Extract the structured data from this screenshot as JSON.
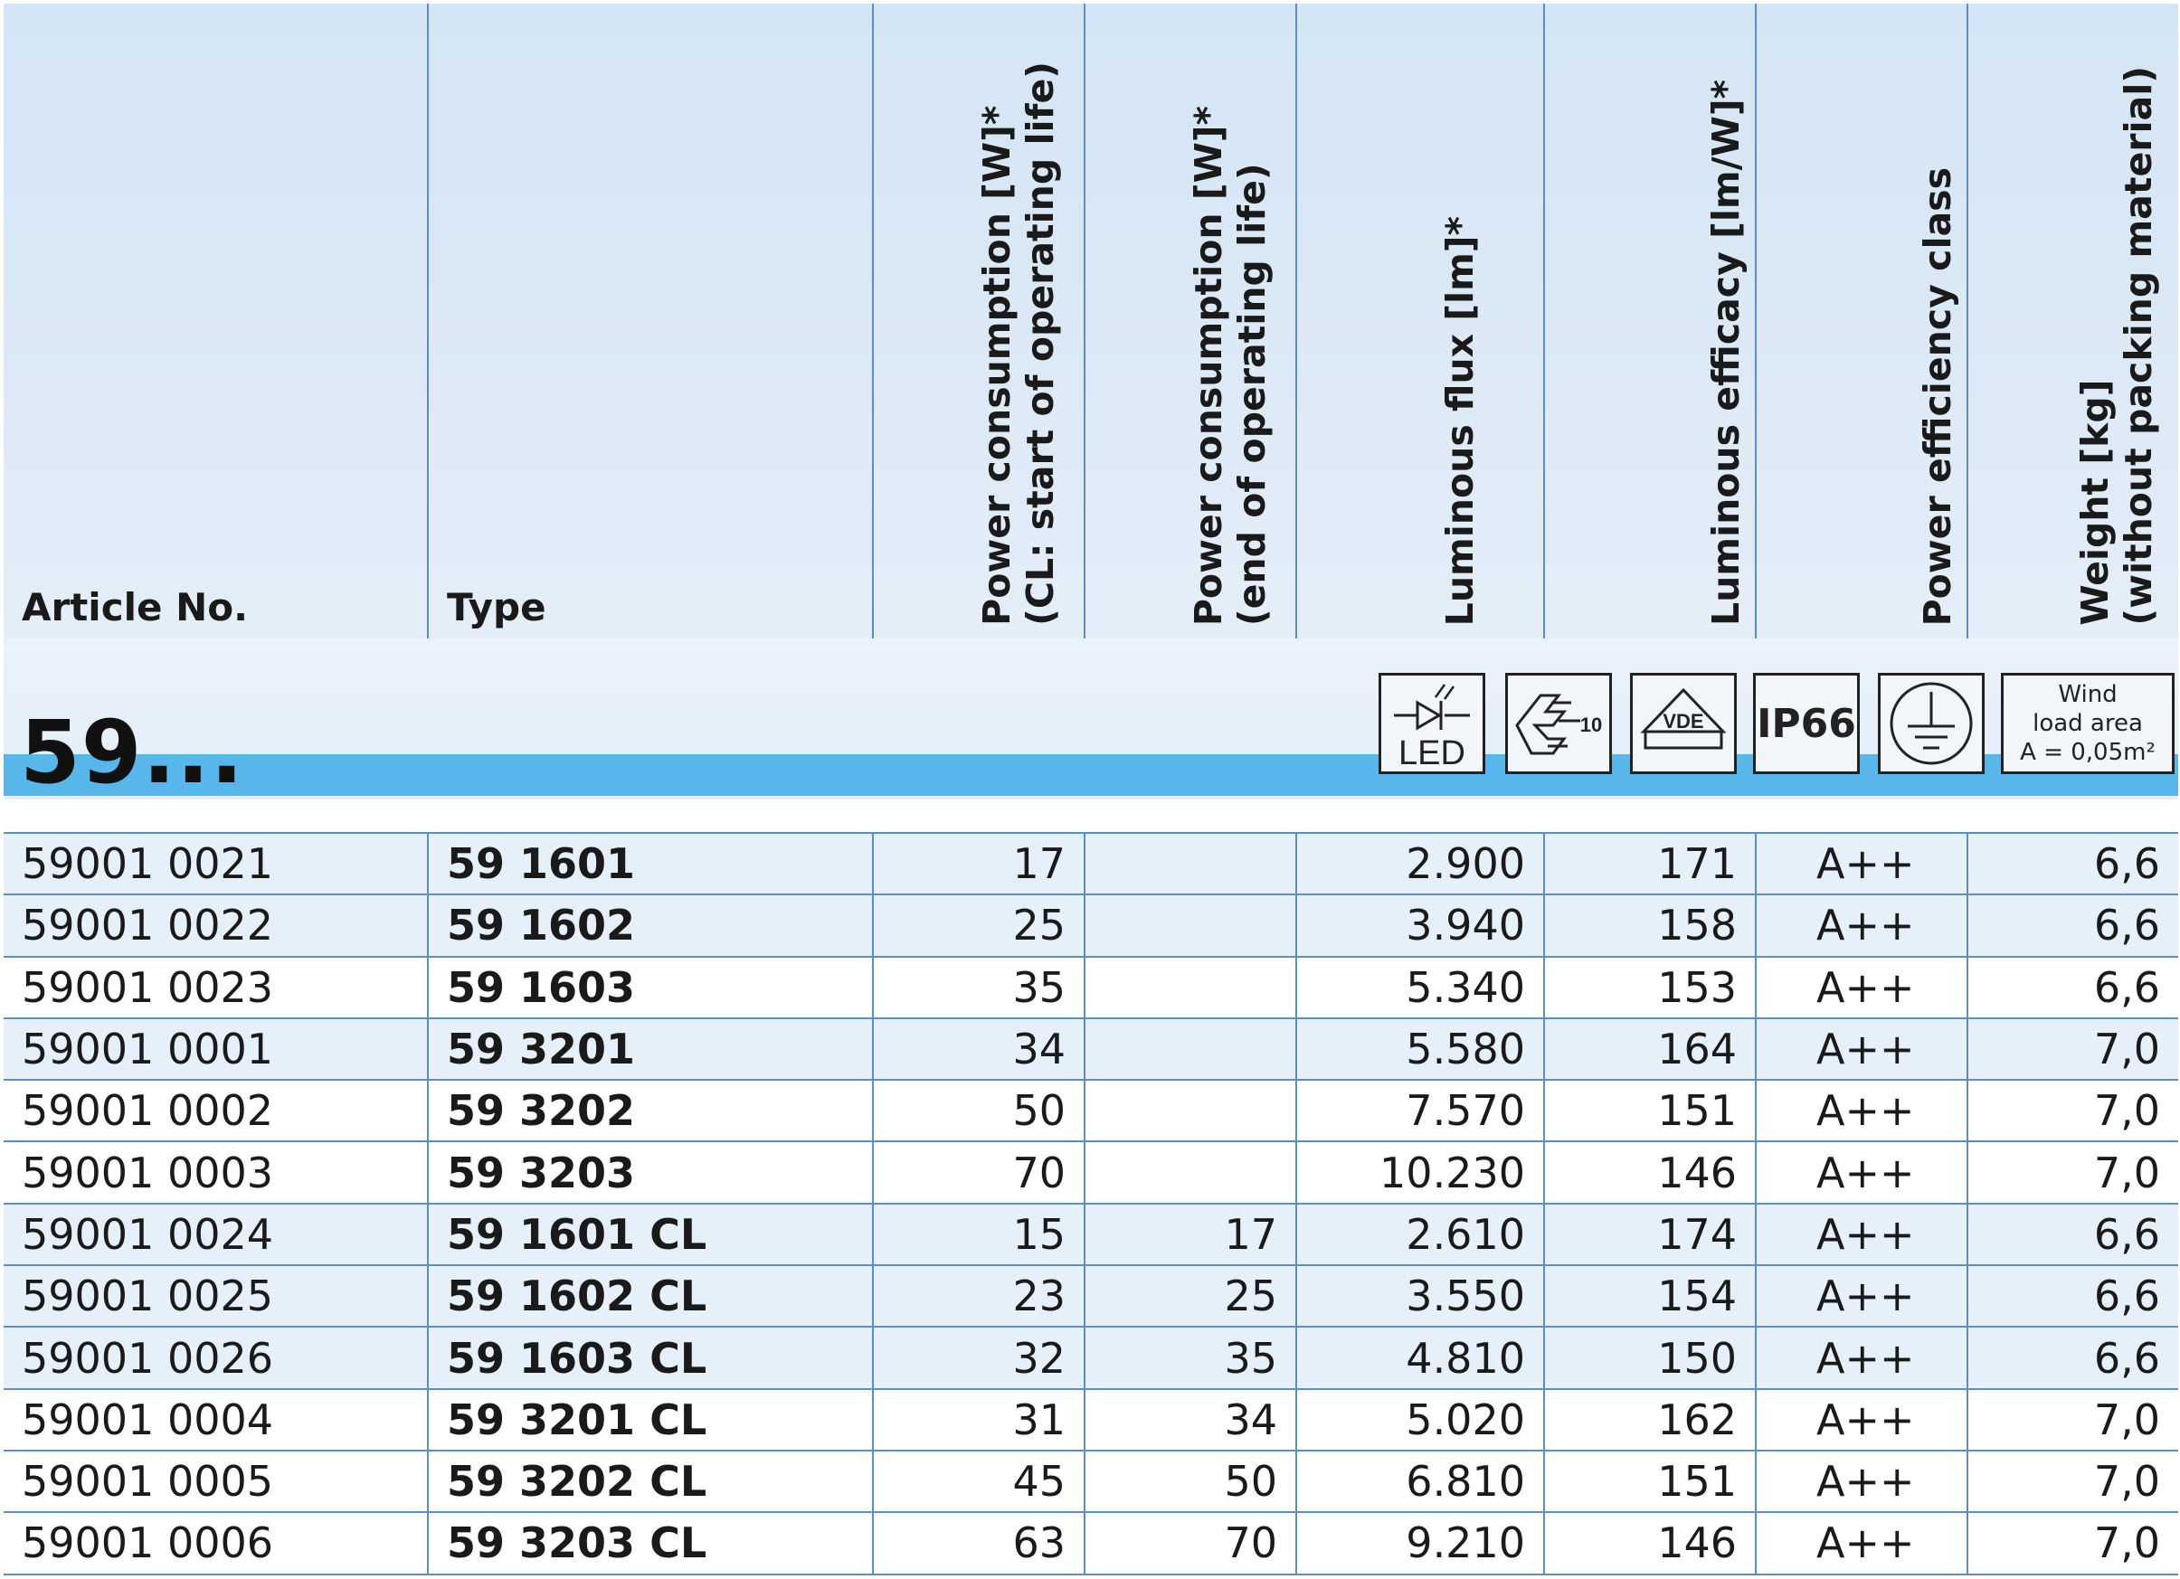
{
  "header": {
    "article_no": "Article No.",
    "type": "Type",
    "power_start": "Power consumption [W]*\n(CL: start of operating life)",
    "power_end": "Power consumption [W]*\n(end of operating life)",
    "luminous_flux": "Luminous flux [lm]*",
    "luminous_efficacy": "Luminous efficacy [lm/W]*",
    "efficiency_class": "Power efficiency class",
    "weight": "Weight [kg]\n(without packing material)"
  },
  "group": {
    "label": "59...",
    "icons": {
      "led": {
        "name": "led-icon",
        "text": "LED"
      },
      "enec": {
        "name": "enec-mark-icon",
        "text": "10"
      },
      "vde": {
        "name": "vde-mark-icon",
        "text": "VDE"
      },
      "ip": {
        "name": "ip66-icon",
        "text": "IP66"
      },
      "ground": {
        "name": "protective-earth-icon"
      },
      "wind": {
        "line1": "Wind",
        "line2": "load area",
        "line3": "A = 0,05m²"
      }
    }
  },
  "rows": [
    {
      "article": "59001 0021",
      "type": "59 1601",
      "power_start": "17",
      "power_end": "",
      "flux": "2.900",
      "efficacy": "171",
      "class": "A++",
      "weight": "6,6"
    },
    {
      "article": "59001 0022",
      "type": "59 1602",
      "power_start": "25",
      "power_end": "",
      "flux": "3.940",
      "efficacy": "158",
      "class": "A++",
      "weight": "6,6"
    },
    {
      "article": "59001 0023",
      "type": "59 1603",
      "power_start": "35",
      "power_end": "",
      "flux": "5.340",
      "efficacy": "153",
      "class": "A++",
      "weight": "6,6"
    },
    {
      "article": "59001 0001",
      "type": "59 3201",
      "power_start": "34",
      "power_end": "",
      "flux": "5.580",
      "efficacy": "164",
      "class": "A++",
      "weight": "7,0"
    },
    {
      "article": "59001 0002",
      "type": "59 3202",
      "power_start": "50",
      "power_end": "",
      "flux": "7.570",
      "efficacy": "151",
      "class": "A++",
      "weight": "7,0"
    },
    {
      "article": "59001 0003",
      "type": "59 3203",
      "power_start": "70",
      "power_end": "",
      "flux": "10.230",
      "efficacy": "146",
      "class": "A++",
      "weight": "7,0"
    },
    {
      "article": "59001 0024",
      "type": "59 1601 CL",
      "power_start": "15",
      "power_end": "17",
      "flux": "2.610",
      "efficacy": "174",
      "class": "A++",
      "weight": "6,6"
    },
    {
      "article": "59001 0025",
      "type": "59 1602 CL",
      "power_start": "23",
      "power_end": "25",
      "flux": "3.550",
      "efficacy": "154",
      "class": "A++",
      "weight": "6,6"
    },
    {
      "article": "59001 0026",
      "type": "59 1603 CL",
      "power_start": "32",
      "power_end": "35",
      "flux": "4.810",
      "efficacy": "150",
      "class": "A++",
      "weight": "6,6"
    },
    {
      "article": "59001 0004",
      "type": "59 3201 CL",
      "power_start": "31",
      "power_end": "34",
      "flux": "5.020",
      "efficacy": "162",
      "class": "A++",
      "weight": "7,0"
    },
    {
      "article": "59001 0005",
      "type": "59 3202 CL",
      "power_start": "45",
      "power_end": "50",
      "flux": "6.810",
      "efficacy": "151",
      "class": "A++",
      "weight": "7,0"
    },
    {
      "article": "59001 0006",
      "type": "59 3203 CL",
      "power_start": "63",
      "power_end": "70",
      "flux": "9.210",
      "efficacy": "146",
      "class": "A++",
      "weight": "7,0"
    }
  ],
  "colors": {
    "grid": "#5c8fbf",
    "header_bg": "#d4e5f5",
    "stripe": "#59b6ea",
    "row_shade": "#e6f0fa"
  }
}
